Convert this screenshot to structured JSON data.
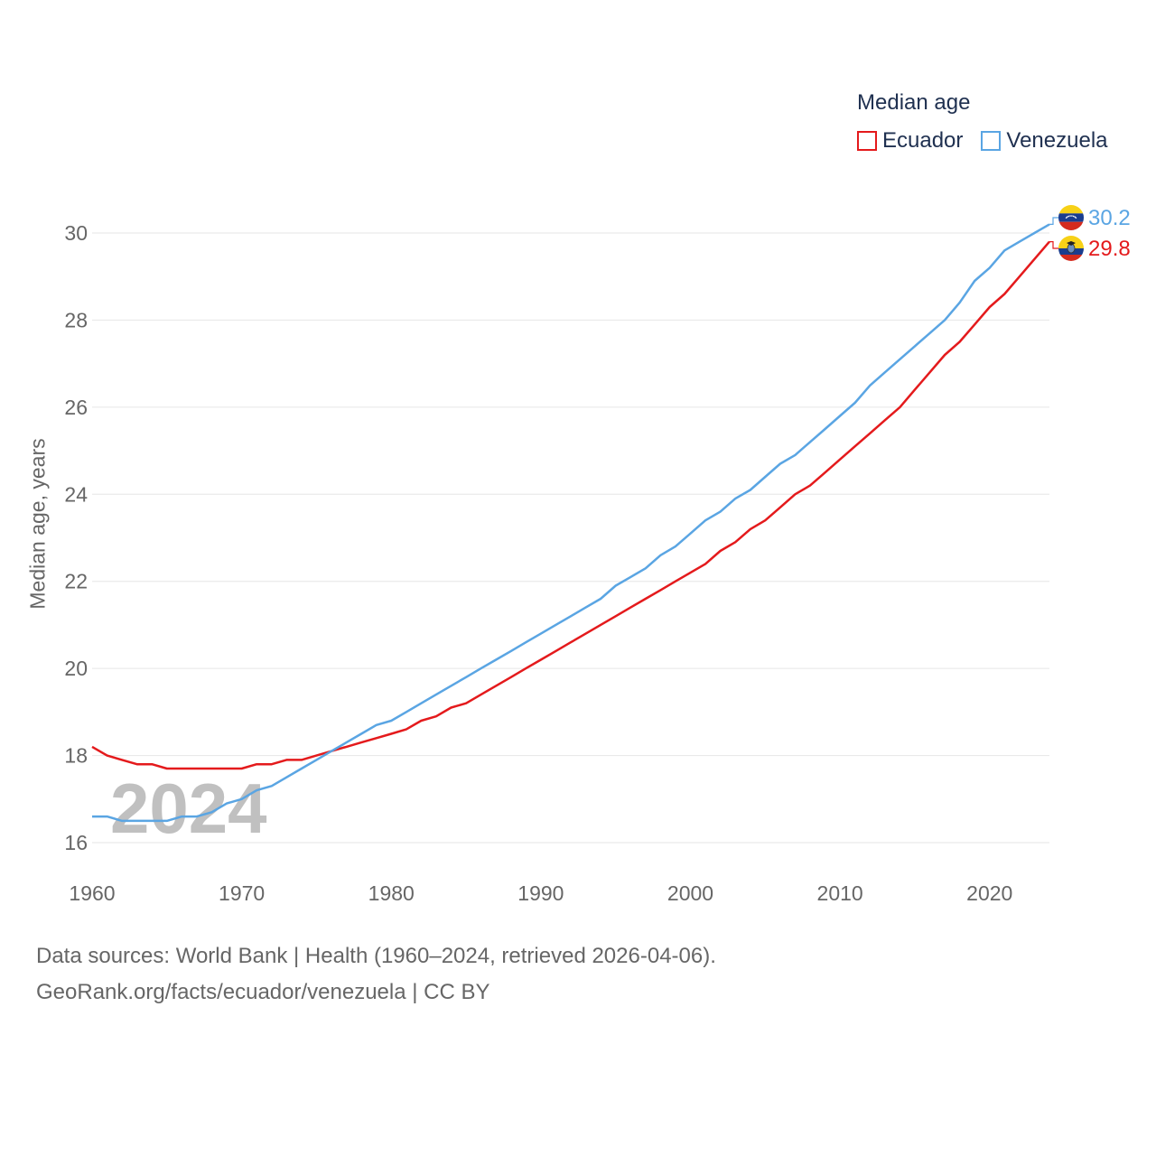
{
  "legend": {
    "title": "Median age",
    "items": [
      {
        "label": "Ecuador",
        "color": "#e41a1c"
      },
      {
        "label": "Venezuela",
        "color": "#5aa5e3"
      }
    ]
  },
  "watermark_year": "2024",
  "footer": {
    "line1": "Data sources: World Bank | Health (1960–2024, retrieved 2026-04-06).",
    "line2": "GeoRank.org/facts/ecuador/venezuela | CC BY"
  },
  "chart_data": {
    "type": "line",
    "title": "Median age",
    "xlabel": "",
    "ylabel": "Median age, years",
    "xlim": [
      1960,
      2024
    ],
    "ylim": [
      16,
      30
    ],
    "x_ticks": [
      1960,
      1970,
      1980,
      1990,
      2000,
      2010,
      2020
    ],
    "y_ticks": [
      16,
      18,
      20,
      22,
      24,
      26,
      28,
      30
    ],
    "grid": true,
    "legend_position": "top-right",
    "x": [
      1960,
      1961,
      1962,
      1963,
      1964,
      1965,
      1966,
      1967,
      1968,
      1969,
      1970,
      1971,
      1972,
      1973,
      1974,
      1975,
      1976,
      1977,
      1978,
      1979,
      1980,
      1981,
      1982,
      1983,
      1984,
      1985,
      1986,
      1987,
      1988,
      1989,
      1990,
      1991,
      1992,
      1993,
      1994,
      1995,
      1996,
      1997,
      1998,
      1999,
      2000,
      2001,
      2002,
      2003,
      2004,
      2005,
      2006,
      2007,
      2008,
      2009,
      2010,
      2011,
      2012,
      2013,
      2014,
      2015,
      2016,
      2017,
      2018,
      2019,
      2020,
      2021,
      2022,
      2023,
      2024
    ],
    "series": [
      {
        "name": "Ecuador",
        "color": "#e41a1c",
        "end_label": "29.8",
        "values": [
          18.2,
          18.0,
          17.9,
          17.8,
          17.8,
          17.7,
          17.7,
          17.7,
          17.7,
          17.7,
          17.7,
          17.8,
          17.8,
          17.9,
          17.9,
          18.0,
          18.1,
          18.2,
          18.3,
          18.4,
          18.5,
          18.6,
          18.8,
          18.9,
          19.1,
          19.2,
          19.4,
          19.6,
          19.8,
          20.0,
          20.2,
          20.4,
          20.6,
          20.8,
          21.0,
          21.2,
          21.4,
          21.6,
          21.8,
          22.0,
          22.2,
          22.4,
          22.7,
          22.9,
          23.2,
          23.4,
          23.7,
          24.0,
          24.2,
          24.5,
          24.8,
          25.1,
          25.4,
          25.7,
          26.0,
          26.4,
          26.8,
          27.2,
          27.5,
          27.9,
          28.3,
          28.6,
          29.0,
          29.4,
          29.8
        ]
      },
      {
        "name": "Venezuela",
        "color": "#5aa5e3",
        "end_label": "30.2",
        "values": [
          16.6,
          16.6,
          16.5,
          16.5,
          16.5,
          16.5,
          16.6,
          16.6,
          16.7,
          16.9,
          17.0,
          17.2,
          17.3,
          17.5,
          17.7,
          17.9,
          18.1,
          18.3,
          18.5,
          18.7,
          18.8,
          19.0,
          19.2,
          19.4,
          19.6,
          19.8,
          20.0,
          20.2,
          20.4,
          20.6,
          20.8,
          21.0,
          21.2,
          21.4,
          21.6,
          21.9,
          22.1,
          22.3,
          22.6,
          22.8,
          23.1,
          23.4,
          23.6,
          23.9,
          24.1,
          24.4,
          24.7,
          24.9,
          25.2,
          25.5,
          25.8,
          26.1,
          26.5,
          26.8,
          27.1,
          27.4,
          27.7,
          28.0,
          28.4,
          28.9,
          29.2,
          29.6,
          29.8,
          30.0,
          30.2
        ]
      }
    ]
  }
}
